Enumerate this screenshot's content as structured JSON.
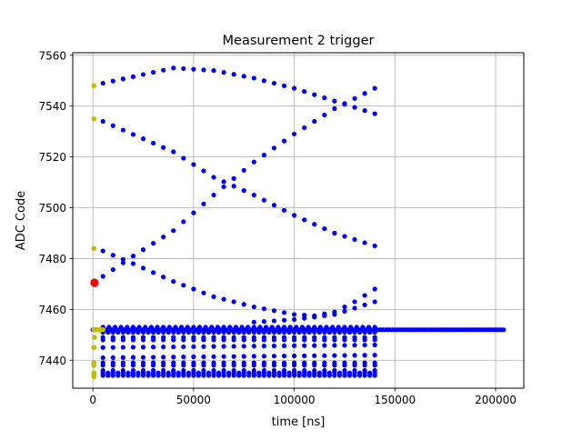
{
  "chart_data": {
    "type": "scatter",
    "title": "Measurement 2 trigger",
    "xlabel": "time [ns]",
    "ylabel": "ADC Code",
    "xlim": [
      -10000,
      214000
    ],
    "ylim": [
      7429,
      7561
    ],
    "xticks": [
      0,
      50000,
      100000,
      150000,
      200000
    ],
    "yticks": [
      7440,
      7460,
      7480,
      7500,
      7520,
      7540,
      7560
    ],
    "grid": true,
    "colors": {
      "main": "#0000ff",
      "aux": "#bfbf00",
      "marker": "#ff0000"
    },
    "series": [
      {
        "color": "#0000ff",
        "curves": [
          {
            "x_start": 5000,
            "x_end": 140000,
            "step": 5000,
            "points": [
              [
                5000,
                7549
              ],
              [
                40000,
                7555
              ],
              [
                60000,
                7554
              ],
              [
                80000,
                7551
              ],
              [
                100000,
                7547
              ],
              [
                120000,
                7542
              ],
              [
                140000,
                7537
              ]
            ]
          },
          {
            "x_start": 5000,
            "x_end": 140000,
            "step": 5000,
            "points": [
              [
                5000,
                7534
              ],
              [
                40000,
                7522
              ],
              [
                60000,
                7512
              ],
              [
                80000,
                7505
              ],
              [
                100000,
                7497
              ],
              [
                120000,
                7490
              ],
              [
                140000,
                7485
              ]
            ]
          },
          {
            "x_start": 5000,
            "x_end": 140000,
            "step": 5000,
            "points": [
              [
                5000,
                7473
              ],
              [
                20000,
                7481
              ],
              [
                40000,
                7491
              ],
              [
                60000,
                7505
              ],
              [
                80000,
                7518
              ],
              [
                100000,
                7529
              ],
              [
                120000,
                7539
              ],
              [
                140000,
                7547
              ]
            ]
          },
          {
            "x_start": 5000,
            "x_end": 140000,
            "step": 5000,
            "points": [
              [
                5000,
                7483
              ],
              [
                20000,
                7478
              ],
              [
                40000,
                7471
              ],
              [
                60000,
                7465
              ],
              [
                80000,
                7461
              ],
              [
                100000,
                7458
              ],
              [
                110000,
                7457.5
              ],
              [
                120000,
                7459
              ],
              [
                130000,
                7463
              ],
              [
                140000,
                7468
              ]
            ]
          },
          {
            "x_start": 80000,
            "x_end": 140000,
            "step": 5000,
            "points": [
              [
                80000,
                7455
              ],
              [
                100000,
                7456
              ],
              [
                120000,
                7458
              ],
              [
                140000,
                7463
              ]
            ]
          },
          {
            "x_start": 0,
            "x_end": 204000,
            "step": 1200,
            "points": [
              [
                0,
                7452
              ],
              [
                204000,
                7452
              ]
            ]
          },
          {
            "x_start": 5000,
            "x_end": 140000,
            "step": 2500,
            "points": [
              [
                5000,
                7451
              ],
              [
                140000,
                7451
              ]
            ]
          },
          {
            "x_start": 5000,
            "x_end": 140000,
            "step": 3000,
            "points": [
              [
                5000,
                7453
              ],
              [
                140000,
                7453
              ]
            ]
          },
          {
            "x_start": 5000,
            "x_end": 140000,
            "step": 5000,
            "points": [
              [
                5000,
                7449
              ],
              [
                140000,
                7449
              ]
            ]
          },
          {
            "x_start": 5000,
            "x_end": 140000,
            "step": 5000,
            "points": [
              [
                5000,
                7448
              ],
              [
                140000,
                7448
              ]
            ]
          },
          {
            "x_start": 5000,
            "x_end": 140000,
            "step": 5000,
            "points": [
              [
                5000,
                7445
              ],
              [
                140000,
                7446
              ]
            ]
          },
          {
            "x_start": 5000,
            "x_end": 140000,
            "step": 5000,
            "points": [
              [
                5000,
                7441
              ],
              [
                140000,
                7442
              ]
            ]
          },
          {
            "x_start": 5000,
            "x_end": 140000,
            "step": 5000,
            "points": [
              [
                5000,
                7439
              ],
              [
                140000,
                7439
              ]
            ]
          },
          {
            "x_start": 5000,
            "x_end": 140000,
            "step": 5000,
            "points": [
              [
                5000,
                7438
              ],
              [
                140000,
                7438
              ]
            ]
          },
          {
            "x_start": 5000,
            "x_end": 140000,
            "step": 5000,
            "points": [
              [
                5000,
                7436
              ],
              [
                140000,
                7436
              ]
            ]
          },
          {
            "x_start": 5000,
            "x_end": 140000,
            "step": 2500,
            "points": [
              [
                5000,
                7435
              ],
              [
                140000,
                7435
              ]
            ]
          },
          {
            "x_start": 5000,
            "x_end": 140000,
            "step": 2500,
            "points": [
              [
                5000,
                7434
              ],
              [
                140000,
                7434
              ]
            ]
          }
        ]
      },
      {
        "color": "#bfbf00",
        "points": [
          [
            500,
            7548
          ],
          [
            500,
            7535
          ],
          [
            500,
            7484
          ],
          [
            500,
            7452
          ],
          [
            800,
            7449
          ],
          [
            500,
            7445
          ],
          [
            500,
            7439
          ],
          [
            500,
            7438
          ],
          [
            500,
            7435
          ],
          [
            500,
            7434
          ],
          [
            500,
            7433.5
          ],
          [
            2000,
            7452
          ],
          [
            3000,
            7452
          ],
          [
            4000,
            7452
          ],
          [
            5000,
            7452
          ]
        ]
      },
      {
        "color": "#ff0000",
        "points": [
          [
            800,
            7470.5
          ]
        ]
      }
    ]
  }
}
